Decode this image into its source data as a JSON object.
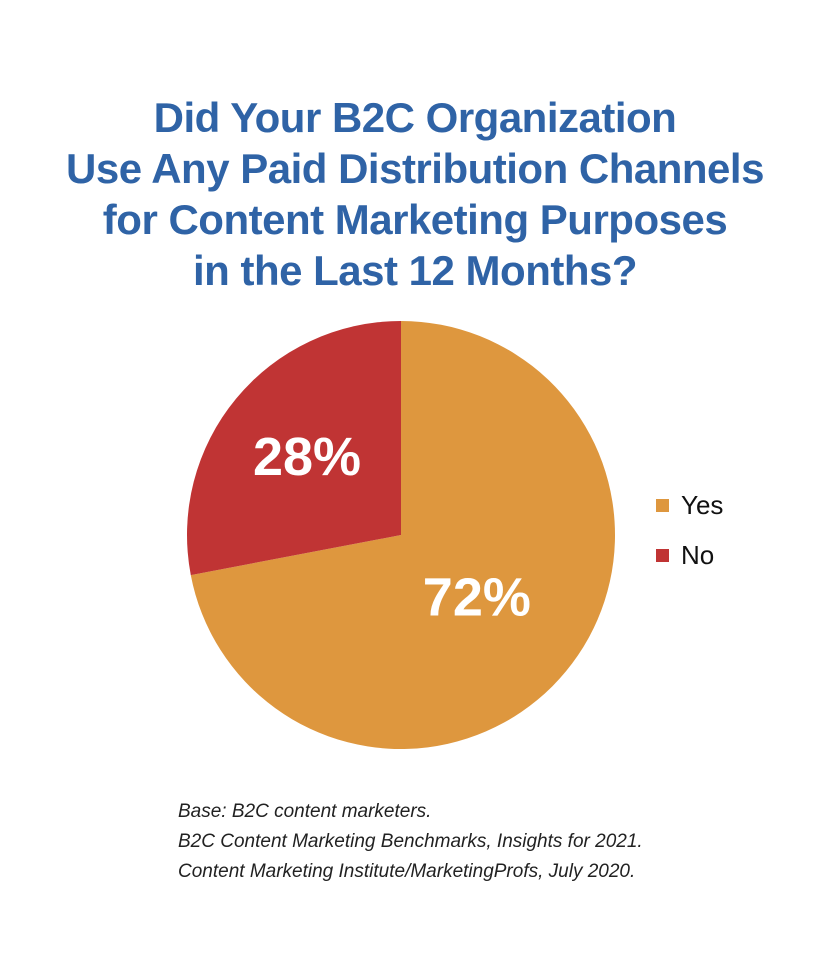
{
  "title_lines": [
    "Did Your B2C Organization",
    "Use Any Paid Distribution Channels",
    "for Content Marketing Purposes",
    "in the Last 12 Months?"
  ],
  "colors": {
    "title": "#2f63a6",
    "yes": "#de973e",
    "no": "#c03434",
    "slice_label": "#ffffff"
  },
  "chart_data": {
    "type": "pie",
    "title": "Did Your B2C Organization Use Any Paid Distribution Channels for Content Marketing Purposes in the Last 12 Months?",
    "categories": [
      "Yes",
      "No"
    ],
    "values": [
      72,
      28
    ],
    "labels": [
      "72%",
      "28%"
    ],
    "legend_position": "right"
  },
  "legend": [
    {
      "label": "Yes"
    },
    {
      "label": "No"
    }
  ],
  "notes": [
    "Base: B2C content marketers.",
    "B2C Content Marketing Benchmarks, Insights for 2021.",
    "Content Marketing Institute/MarketingProfs, July 2020."
  ]
}
